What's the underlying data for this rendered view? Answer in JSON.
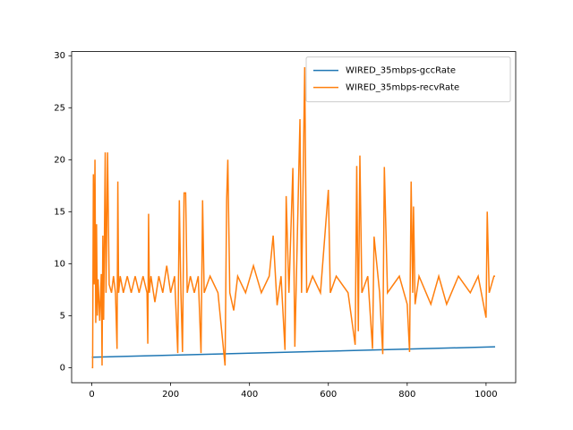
{
  "chart_data": {
    "type": "line",
    "xlim": [
      -51.2,
      1075.2
    ],
    "ylim": [
      -1.45,
      30.4
    ],
    "xticks": [
      0,
      200,
      400,
      600,
      800,
      1000
    ],
    "yticks": [
      0,
      5,
      10,
      15,
      20,
      25,
      30
    ],
    "legend": "upper right",
    "series": [
      {
        "name": "WIRED_35mbps-gccRate",
        "color": "#1f77b4",
        "x": [
          0,
          1023
        ],
        "values": [
          1,
          2
        ]
      },
      {
        "name": "WIRED_35mbps-recvRate",
        "color": "#ff7f0e",
        "x": [
          0,
          2,
          4,
          6,
          8,
          10,
          12,
          14,
          16,
          20,
          24,
          26,
          28,
          30,
          34,
          36,
          40,
          44,
          50,
          55,
          60,
          64,
          66,
          68,
          72,
          80,
          90,
          100,
          110,
          120,
          130,
          140,
          142,
          144,
          146,
          150,
          160,
          170,
          180,
          190,
          200,
          210,
          218,
          222,
          226,
          230,
          234,
          238,
          242,
          250,
          260,
          270,
          277,
          281,
          285,
          300,
          320,
          338,
          342,
          345,
          350,
          360,
          370,
          390,
          410,
          430,
          450,
          460,
          470,
          480,
          490,
          493,
          500,
          510,
          515,
          528,
          532,
          540,
          545,
          560,
          580,
          600,
          605,
          620,
          650,
          668,
          672,
          676,
          680,
          685,
          700,
          712,
          716,
          730,
          738,
          742,
          750,
          780,
          800,
          806,
          810,
          814,
          816,
          820,
          830,
          860,
          880,
          900,
          930,
          960,
          980,
          1000,
          1003,
          1008,
          1020,
          1023
        ],
        "values": [
          0,
          0,
          18.6,
          8,
          20,
          4.3,
          13.8,
          5,
          8.5,
          4.5,
          9,
          0.2,
          12.7,
          4.6,
          20.7,
          7.2,
          20.7,
          8,
          7.2,
          8.8,
          7.2,
          1.8,
          17.9,
          7.2,
          8.8,
          7.2,
          8.8,
          7.2,
          8.8,
          7.2,
          8.8,
          7.2,
          2.3,
          14.8,
          7.2,
          8.8,
          6.3,
          8.8,
          7.2,
          9.8,
          7.2,
          8.8,
          1.4,
          16.1,
          7.2,
          1.5,
          16.8,
          16.8,
          7.2,
          8.8,
          7.2,
          8.8,
          1.4,
          16.1,
          7.2,
          8.8,
          7.2,
          0.2,
          16.1,
          20,
          7.2,
          5.5,
          8.8,
          7.2,
          9.8,
          7.2,
          8.8,
          12.7,
          6,
          8.8,
          1.7,
          16.5,
          7.2,
          19.2,
          2,
          23.9,
          7.2,
          28.9,
          7.2,
          8.8,
          7.2,
          17.1,
          7.2,
          8.8,
          7.2,
          2.2,
          19.4,
          3.5,
          20.4,
          7.2,
          8.8,
          1.8,
          12.6,
          7.2,
          1.3,
          19.3,
          7.2,
          8.8,
          6.1,
          1.5,
          17.9,
          7.2,
          15.5,
          6.1,
          8.8,
          6.1,
          8.8,
          6.1,
          8.8,
          7.2,
          8.8,
          4.8,
          15,
          7.2,
          8.8,
          8.8
        ]
      }
    ]
  }
}
